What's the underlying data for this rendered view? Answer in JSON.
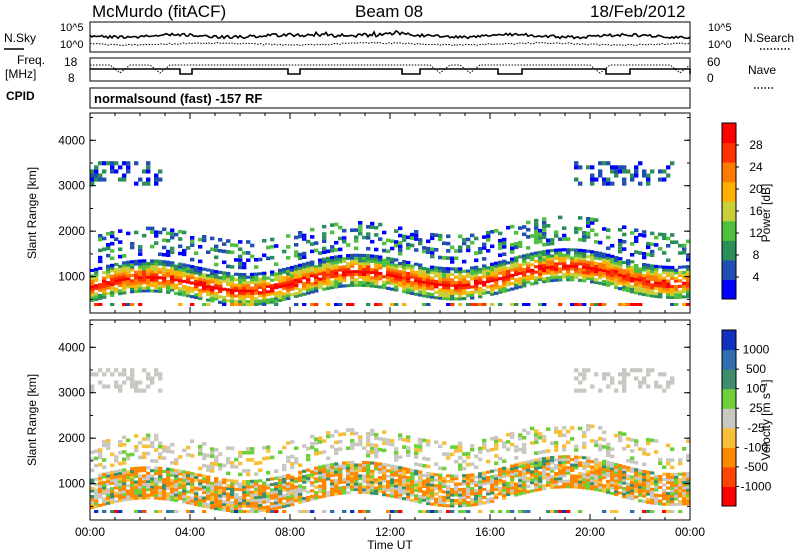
{
  "header": {
    "station": "McMurdo (fitACF)",
    "beam": "Beam 08",
    "date": "18/Feb/2012"
  },
  "noise_panel": {
    "left_label": "N.Sky",
    "right_label": "N.Search",
    "tick_high": "10^5",
    "tick_low": "10^0"
  },
  "freq_panel": {
    "left_label_line1": "Freq.",
    "left_label_line2": "[MHz]",
    "left_ticks": [
      "18",
      "8"
    ],
    "right_label": "Nave",
    "right_ticks": [
      "60",
      "0"
    ]
  },
  "cpid": {
    "label": "CPID",
    "text": "normalsound (fast) -157 RF"
  },
  "colors": {
    "power_scale": [
      "#0000ff",
      "#1f4fb0",
      "#2c8f59",
      "#4fbf3f",
      "#c8cf3a",
      "#ffb000",
      "#ff7a00",
      "#ff3300",
      "#ff0000"
    ],
    "velocity_scale": [
      "#1030c0",
      "#2f6fb0",
      "#3c8f6a",
      "#6fcf3a",
      "#c8c8c0",
      "#f8bf3a",
      "#ff8800",
      "#ff4400",
      "#ff0000"
    ]
  },
  "chart_data": [
    {
      "type": "heatmap",
      "title": "",
      "xlabel": "",
      "ylabel": "Slant Range [km]",
      "xlim": [
        "00:00",
        "00:00"
      ],
      "ylim": [
        200,
        4600
      ],
      "y_ticks": [
        "1000",
        "2000",
        "3000",
        "4000"
      ],
      "colorbar": {
        "label": "Power [dB]",
        "ticks": [
          "4",
          "8",
          "12",
          "16",
          "20",
          "24",
          "28"
        ],
        "range": [
          0,
          30
        ]
      }
    },
    {
      "type": "heatmap",
      "title": "",
      "xlabel": "Time UT",
      "ylabel": "Slant Range [km]",
      "x_ticks": [
        "00:00",
        "04:00",
        "08:00",
        "12:00",
        "16:00",
        "20:00",
        "00:00"
      ],
      "ylim": [
        200,
        4600
      ],
      "y_ticks": [
        "1000",
        "2000",
        "3000",
        "4000"
      ],
      "colorbar": {
        "label": "Velocity [m s⁻¹]",
        "ticks": [
          "1000",
          "500",
          "100",
          "25",
          "-25",
          "-100",
          "-500",
          "-1000"
        ]
      }
    }
  ]
}
